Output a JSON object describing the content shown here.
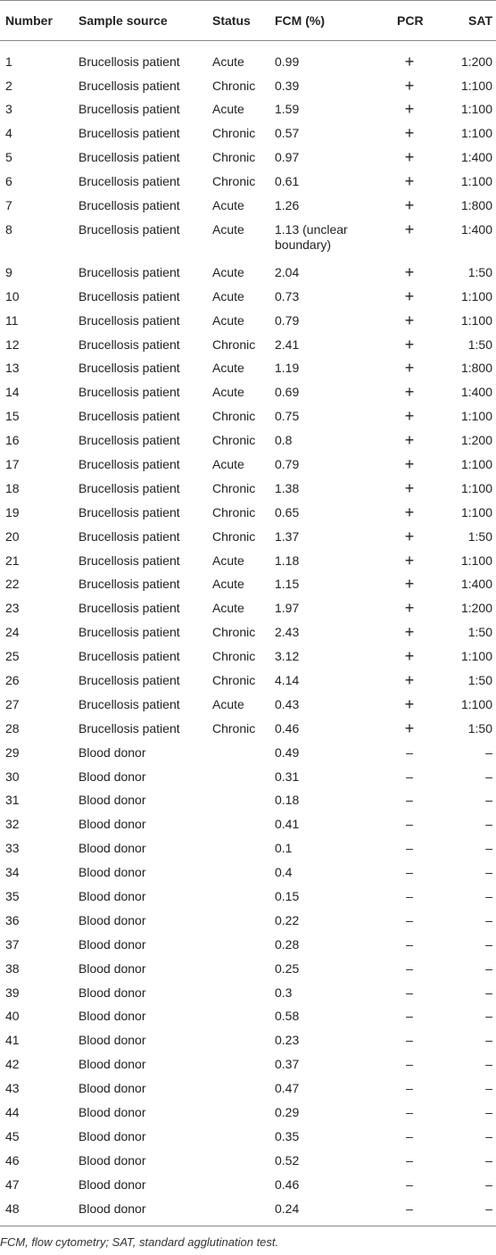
{
  "table": {
    "headers": [
      "Number",
      "Sample source",
      "Status",
      "FCM (%)",
      "PCR",
      "SAT"
    ],
    "rows": [
      {
        "number": "1",
        "source": "Brucellosis patient",
        "status": "Acute",
        "fcm": "0.99",
        "pcr": "+",
        "sat": "1:200"
      },
      {
        "number": "2",
        "source": "Brucellosis patient",
        "status": "Chronic",
        "fcm": "0.39",
        "pcr": "+",
        "sat": "1:100"
      },
      {
        "number": "3",
        "source": "Brucellosis patient",
        "status": "Acute",
        "fcm": "1.59",
        "pcr": "+",
        "sat": "1:100"
      },
      {
        "number": "4",
        "source": "Brucellosis patient",
        "status": "Chronic",
        "fcm": "0.57",
        "pcr": "+",
        "sat": "1:100"
      },
      {
        "number": "5",
        "source": "Brucellosis patient",
        "status": "Chronic",
        "fcm": "0.97",
        "pcr": "+",
        "sat": "1:400"
      },
      {
        "number": "6",
        "source": "Brucellosis patient",
        "status": "Chronic",
        "fcm": "0.61",
        "pcr": "+",
        "sat": "1:100"
      },
      {
        "number": "7",
        "source": "Brucellosis patient",
        "status": "Acute",
        "fcm": "1.26",
        "pcr": "+",
        "sat": "1:800"
      },
      {
        "number": "8",
        "source": "Brucellosis patient",
        "status": "Acute",
        "fcm": "1.13 (unclear boundary)",
        "pcr": "+",
        "sat": "1:400"
      },
      {
        "number": "9",
        "source": "Brucellosis patient",
        "status": "Acute",
        "fcm": "2.04",
        "pcr": "+",
        "sat": "1:50"
      },
      {
        "number": "10",
        "source": "Brucellosis patient",
        "status": "Acute",
        "fcm": "0.73",
        "pcr": "+",
        "sat": "1:100"
      },
      {
        "number": "11",
        "source": "Brucellosis patient",
        "status": "Acute",
        "fcm": "0.79",
        "pcr": "+",
        "sat": "1:100"
      },
      {
        "number": "12",
        "source": "Brucellosis patient",
        "status": "Chronic",
        "fcm": "2.41",
        "pcr": "+",
        "sat": "1:50"
      },
      {
        "number": "13",
        "source": "Brucellosis patient",
        "status": "Acute",
        "fcm": "1.19",
        "pcr": "+",
        "sat": "1:800"
      },
      {
        "number": "14",
        "source": "Brucellosis patient",
        "status": "Acute",
        "fcm": "0.69",
        "pcr": "+",
        "sat": "1:400"
      },
      {
        "number": "15",
        "source": "Brucellosis patient",
        "status": "Chronic",
        "fcm": "0.75",
        "pcr": "+",
        "sat": "1:100"
      },
      {
        "number": "16",
        "source": "Brucellosis patient",
        "status": "Chronic",
        "fcm": "0.8",
        "pcr": "+",
        "sat": "1:200"
      },
      {
        "number": "17",
        "source": "Brucellosis patient",
        "status": "Acute",
        "fcm": "0.79",
        "pcr": "+",
        "sat": "1:100"
      },
      {
        "number": "18",
        "source": "Brucellosis patient",
        "status": "Chronic",
        "fcm": "1.38",
        "pcr": "+",
        "sat": "1:100"
      },
      {
        "number": "19",
        "source": "Brucellosis patient",
        "status": "Chronic",
        "fcm": "0.65",
        "pcr": "+",
        "sat": "1:100"
      },
      {
        "number": "20",
        "source": "Brucellosis patient",
        "status": "Chronic",
        "fcm": "1.37",
        "pcr": "+",
        "sat": "1:50"
      },
      {
        "number": "21",
        "source": "Brucellosis patient",
        "status": "Acute",
        "fcm": "1.18",
        "pcr": "+",
        "sat": "1:100"
      },
      {
        "number": "22",
        "source": "Brucellosis patient",
        "status": "Acute",
        "fcm": "1.15",
        "pcr": "+",
        "sat": "1:400"
      },
      {
        "number": "23",
        "source": "Brucellosis patient",
        "status": "Acute",
        "fcm": "1.97",
        "pcr": "+",
        "sat": "1:200"
      },
      {
        "number": "24",
        "source": "Brucellosis patient",
        "status": "Chronic",
        "fcm": "2.43",
        "pcr": "+",
        "sat": "1:50"
      },
      {
        "number": "25",
        "source": "Brucellosis patient",
        "status": "Chronic",
        "fcm": "3.12",
        "pcr": "+",
        "sat": "1:100"
      },
      {
        "number": "26",
        "source": "Brucellosis patient",
        "status": "Chronic",
        "fcm": "4.14",
        "pcr": "+",
        "sat": "1:50"
      },
      {
        "number": "27",
        "source": "Brucellosis patient",
        "status": "Acute",
        "fcm": "0.43",
        "pcr": "+",
        "sat": "1:100"
      },
      {
        "number": "28",
        "source": "Brucellosis patient",
        "status": "Chronic",
        "fcm": "0.46",
        "pcr": "+",
        "sat": "1:50"
      },
      {
        "number": "29",
        "source": "Blood donor",
        "status": "",
        "fcm": "0.49",
        "pcr": "–",
        "sat": "–"
      },
      {
        "number": "30",
        "source": "Blood donor",
        "status": "",
        "fcm": "0.31",
        "pcr": "–",
        "sat": "–"
      },
      {
        "number": "31",
        "source": "Blood donor",
        "status": "",
        "fcm": "0.18",
        "pcr": "–",
        "sat": "–"
      },
      {
        "number": "32",
        "source": "Blood donor",
        "status": "",
        "fcm": "0.41",
        "pcr": "–",
        "sat": "–"
      },
      {
        "number": "33",
        "source": "Blood donor",
        "status": "",
        "fcm": "0.1",
        "pcr": "–",
        "sat": "–"
      },
      {
        "number": "34",
        "source": "Blood donor",
        "status": "",
        "fcm": "0.4",
        "pcr": "–",
        "sat": "–"
      },
      {
        "number": "35",
        "source": "Blood donor",
        "status": "",
        "fcm": "0.15",
        "pcr": "–",
        "sat": "–"
      },
      {
        "number": "36",
        "source": "Blood donor",
        "status": "",
        "fcm": "0.22",
        "pcr": "–",
        "sat": "–"
      },
      {
        "number": "37",
        "source": "Blood donor",
        "status": "",
        "fcm": "0.28",
        "pcr": "–",
        "sat": "–"
      },
      {
        "number": "38",
        "source": "Blood donor",
        "status": "",
        "fcm": "0.25",
        "pcr": "–",
        "sat": "–"
      },
      {
        "number": "39",
        "source": "Blood donor",
        "status": "",
        "fcm": "0.3",
        "pcr": "–",
        "sat": "–"
      },
      {
        "number": "40",
        "source": "Blood donor",
        "status": "",
        "fcm": "0.58",
        "pcr": "–",
        "sat": "–"
      },
      {
        "number": "41",
        "source": "Blood donor",
        "status": "",
        "fcm": "0.23",
        "pcr": "–",
        "sat": "–"
      },
      {
        "number": "42",
        "source": "Blood donor",
        "status": "",
        "fcm": "0.37",
        "pcr": "–",
        "sat": "–"
      },
      {
        "number": "43",
        "source": "Blood donor",
        "status": "",
        "fcm": "0.47",
        "pcr": "–",
        "sat": "–"
      },
      {
        "number": "44",
        "source": "Blood donor",
        "status": "",
        "fcm": "0.29",
        "pcr": "–",
        "sat": "–"
      },
      {
        "number": "45",
        "source": "Blood donor",
        "status": "",
        "fcm": "0.35",
        "pcr": "–",
        "sat": "–"
      },
      {
        "number": "46",
        "source": "Blood donor",
        "status": "",
        "fcm": "0.52",
        "pcr": "–",
        "sat": "–"
      },
      {
        "number": "47",
        "source": "Blood donor",
        "status": "",
        "fcm": "0.46",
        "pcr": "–",
        "sat": "–"
      },
      {
        "number": "48",
        "source": "Blood donor",
        "status": "",
        "fcm": "0.24",
        "pcr": "–",
        "sat": "–"
      }
    ]
  },
  "footnote": "FCM, flow cytometry; SAT, standard agglutination test."
}
